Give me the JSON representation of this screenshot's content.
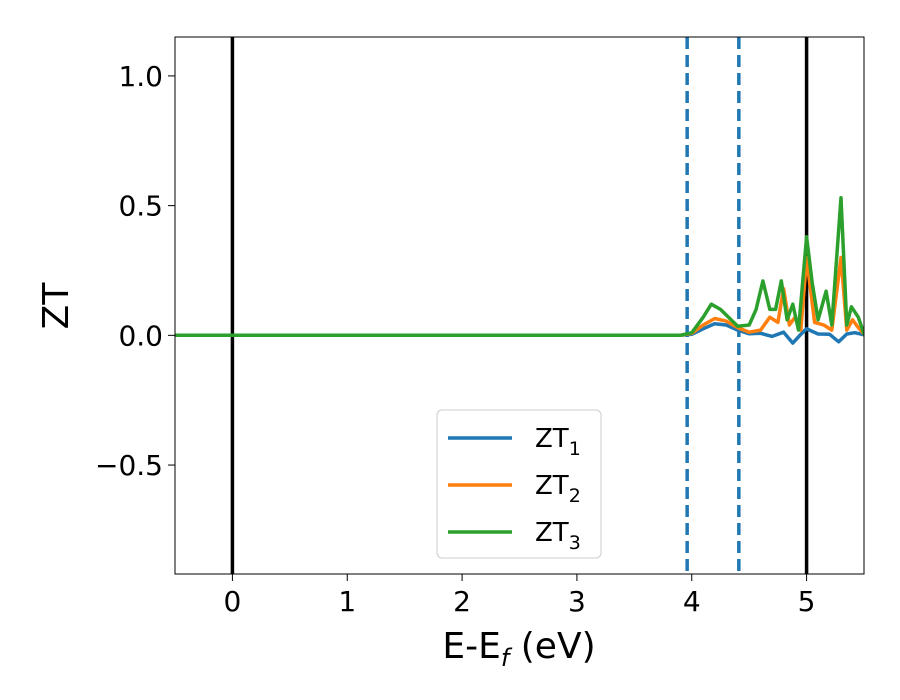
{
  "chart_data": {
    "type": "line",
    "xlabel": "E-E",
    "xlabel_sub": "f",
    "xlabel_unit": "(eV)",
    "ylabel": "ZT",
    "xlim": [
      -0.5,
      5.5
    ],
    "ylim": [
      -0.92,
      1.15
    ],
    "x_ticks": [
      0,
      1,
      2,
      3,
      4,
      5
    ],
    "x_tick_labels": [
      "0",
      "1",
      "2",
      "3",
      "4",
      "5"
    ],
    "y_ticks": [
      -0.5,
      0.0,
      0.5,
      1.0
    ],
    "y_tick_labels": [
      "−0.5",
      "0.0",
      "0.5",
      "1.0"
    ],
    "grid": false,
    "legend_position": "lower-center",
    "vlines": [
      {
        "x": 0.0,
        "style": "solid",
        "color": "#000000"
      },
      {
        "x": 3.96,
        "style": "dashed",
        "color": "#1f77b4"
      },
      {
        "x": 4.41,
        "style": "dashed",
        "color": "#1f77b4"
      },
      {
        "x": 5.0,
        "style": "solid",
        "color": "#000000"
      }
    ],
    "series": [
      {
        "name": "ZT",
        "sub": "1",
        "color": "#1f77b4",
        "points": [
          [
            -0.5,
            0
          ],
          [
            3.9,
            0
          ],
          [
            4.0,
            0.004
          ],
          [
            4.1,
            0.025
          ],
          [
            4.2,
            0.045
          ],
          [
            4.3,
            0.04
          ],
          [
            4.4,
            0.02
          ],
          [
            4.5,
            0.006
          ],
          [
            4.6,
            0.008
          ],
          [
            4.7,
            -0.004
          ],
          [
            4.8,
            0.012
          ],
          [
            4.88,
            -0.03
          ],
          [
            4.95,
            0.004
          ],
          [
            5.0,
            0.025
          ],
          [
            5.1,
            0.005
          ],
          [
            5.2,
            0.004
          ],
          [
            5.28,
            -0.025
          ],
          [
            5.35,
            0.005
          ],
          [
            5.42,
            0.01
          ],
          [
            5.5,
            0.002
          ]
        ]
      },
      {
        "name": "ZT",
        "sub": "2",
        "color": "#ff7f0e",
        "points": [
          [
            -0.5,
            0
          ],
          [
            3.9,
            0
          ],
          [
            4.0,
            0.008
          ],
          [
            4.1,
            0.04
          ],
          [
            4.2,
            0.065
          ],
          [
            4.3,
            0.055
          ],
          [
            4.4,
            0.03
          ],
          [
            4.5,
            0.012
          ],
          [
            4.6,
            0.02
          ],
          [
            4.68,
            0.07
          ],
          [
            4.75,
            0.05
          ],
          [
            4.8,
            0.18
          ],
          [
            4.85,
            0.04
          ],
          [
            4.9,
            0.07
          ],
          [
            4.95,
            0.02
          ],
          [
            5.0,
            0.3
          ],
          [
            5.07,
            0.05
          ],
          [
            5.15,
            0.04
          ],
          [
            5.22,
            0.02
          ],
          [
            5.3,
            0.3
          ],
          [
            5.35,
            0.02
          ],
          [
            5.4,
            0.06
          ],
          [
            5.45,
            0.03
          ],
          [
            5.5,
            0.005
          ]
        ]
      },
      {
        "name": "ZT",
        "sub": "3",
        "color": "#2ca02c",
        "points": [
          [
            -0.5,
            0
          ],
          [
            3.9,
            0
          ],
          [
            4.0,
            0.01
          ],
          [
            4.1,
            0.07
          ],
          [
            4.17,
            0.12
          ],
          [
            4.25,
            0.1
          ],
          [
            4.32,
            0.07
          ],
          [
            4.4,
            0.035
          ],
          [
            4.5,
            0.04
          ],
          [
            4.56,
            0.1
          ],
          [
            4.62,
            0.21
          ],
          [
            4.68,
            0.1
          ],
          [
            4.73,
            0.1
          ],
          [
            4.78,
            0.21
          ],
          [
            4.83,
            0.06
          ],
          [
            4.88,
            0.12
          ],
          [
            4.93,
            0.02
          ],
          [
            5.0,
            0.38
          ],
          [
            5.05,
            0.2
          ],
          [
            5.1,
            0.06
          ],
          [
            5.17,
            0.17
          ],
          [
            5.22,
            0.04
          ],
          [
            5.3,
            0.53
          ],
          [
            5.35,
            0.04
          ],
          [
            5.39,
            0.11
          ],
          [
            5.45,
            0.07
          ],
          [
            5.5,
            0.005
          ]
        ]
      }
    ]
  }
}
